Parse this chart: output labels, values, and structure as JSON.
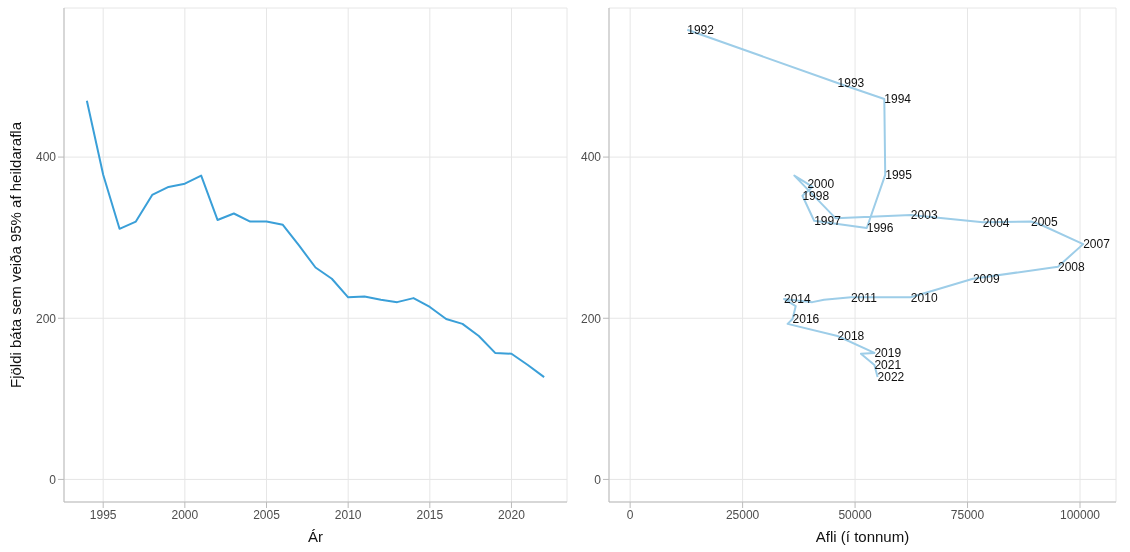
{
  "chart_data": [
    {
      "type": "line",
      "xlabel": "Ár",
      "ylabel": "Fjöldi báta sem veiða 95% af heildarafla",
      "x": [
        1994,
        1995,
        1996,
        1997,
        1998,
        1999,
        2000,
        2001,
        2002,
        2003,
        2004,
        2005,
        2006,
        2007,
        2008,
        2009,
        2010,
        2011,
        2012,
        2013,
        2014,
        2015,
        2016,
        2017,
        2018,
        2019,
        2020,
        2021,
        2022
      ],
      "series": [
        {
          "color": "#3a9fd8",
          "values": [
            470,
            378,
            311,
            320,
            353,
            363,
            367,
            377,
            322,
            330,
            320,
            320,
            316,
            290,
            263,
            249,
            226,
            227,
            223,
            220,
            225,
            214,
            199,
            193,
            178,
            157,
            156,
            142,
            127
          ]
        }
      ],
      "xlim": [
        1992.6,
        2023.4
      ],
      "xticks": [
        1995,
        2000,
        2005,
        2010,
        2015,
        2020
      ],
      "ylim": [
        -28,
        585
      ],
      "yticks": [
        0,
        200,
        400
      ],
      "grid": true
    },
    {
      "type": "line",
      "xlabel": "Afli (í tonnum)",
      "series": [
        {
          "color": "#9dcde8",
          "x": [
            12700,
            46100,
            56500,
            56700,
            52600,
            40900,
            38300,
            40500,
            39400,
            36500,
            45700,
            62400,
            78400,
            89100,
            91300,
            100700,
            95100,
            76200,
            62400,
            49100,
            43100,
            40500,
            34200,
            36800,
            36100,
            35000,
            46100,
            54300,
            51300,
            54300,
            55000
          ],
          "values": [
            558,
            492,
            472,
            378,
            312,
            321,
            352,
            363,
            367,
            377,
            324,
            328,
            319,
            320,
            316,
            292,
            264,
            249,
            226,
            226,
            223,
            220,
            224,
            215,
            199,
            193,
            178,
            157,
            156,
            142,
            127
          ]
        }
      ],
      "xlim": [
        -4700,
        108000
      ],
      "xticks": [
        0,
        25000,
        50000,
        75000,
        100000
      ],
      "ylim": [
        -28,
        585
      ],
      "yticks": [
        0,
        200,
        400
      ],
      "grid": true,
      "annotations": [
        {
          "text": "1992",
          "x": 12700,
          "y": 558
        },
        {
          "text": "1993",
          "x": 46100,
          "y": 492
        },
        {
          "text": "1994",
          "x": 56500,
          "y": 472
        },
        {
          "text": "1995",
          "x": 56700,
          "y": 378
        },
        {
          "text": "1996",
          "x": 52600,
          "y": 312
        },
        {
          "text": "1997",
          "x": 40900,
          "y": 321
        },
        {
          "text": "1998",
          "x": 38300,
          "y": 352
        },
        {
          "text": "2000",
          "x": 39400,
          "y": 367
        },
        {
          "text": "2003",
          "x": 62400,
          "y": 328
        },
        {
          "text": "2004",
          "x": 78400,
          "y": 319
        },
        {
          "text": "2005",
          "x": 89100,
          "y": 320
        },
        {
          "text": "2007",
          "x": 100700,
          "y": 292
        },
        {
          "text": "2008",
          "x": 95100,
          "y": 264
        },
        {
          "text": "2009",
          "x": 76200,
          "y": 249
        },
        {
          "text": "2010",
          "x": 62400,
          "y": 226
        },
        {
          "text": "2011",
          "x": 49100,
          "y": 226
        },
        {
          "text": "2014",
          "x": 34200,
          "y": 224
        },
        {
          "text": "2016",
          "x": 36100,
          "y": 199
        },
        {
          "text": "2018",
          "x": 46100,
          "y": 178
        },
        {
          "text": "2019",
          "x": 54300,
          "y": 157
        },
        {
          "text": "2021",
          "x": 54300,
          "y": 142
        },
        {
          "text": "2022",
          "x": 55000,
          "y": 127
        }
      ]
    }
  ]
}
